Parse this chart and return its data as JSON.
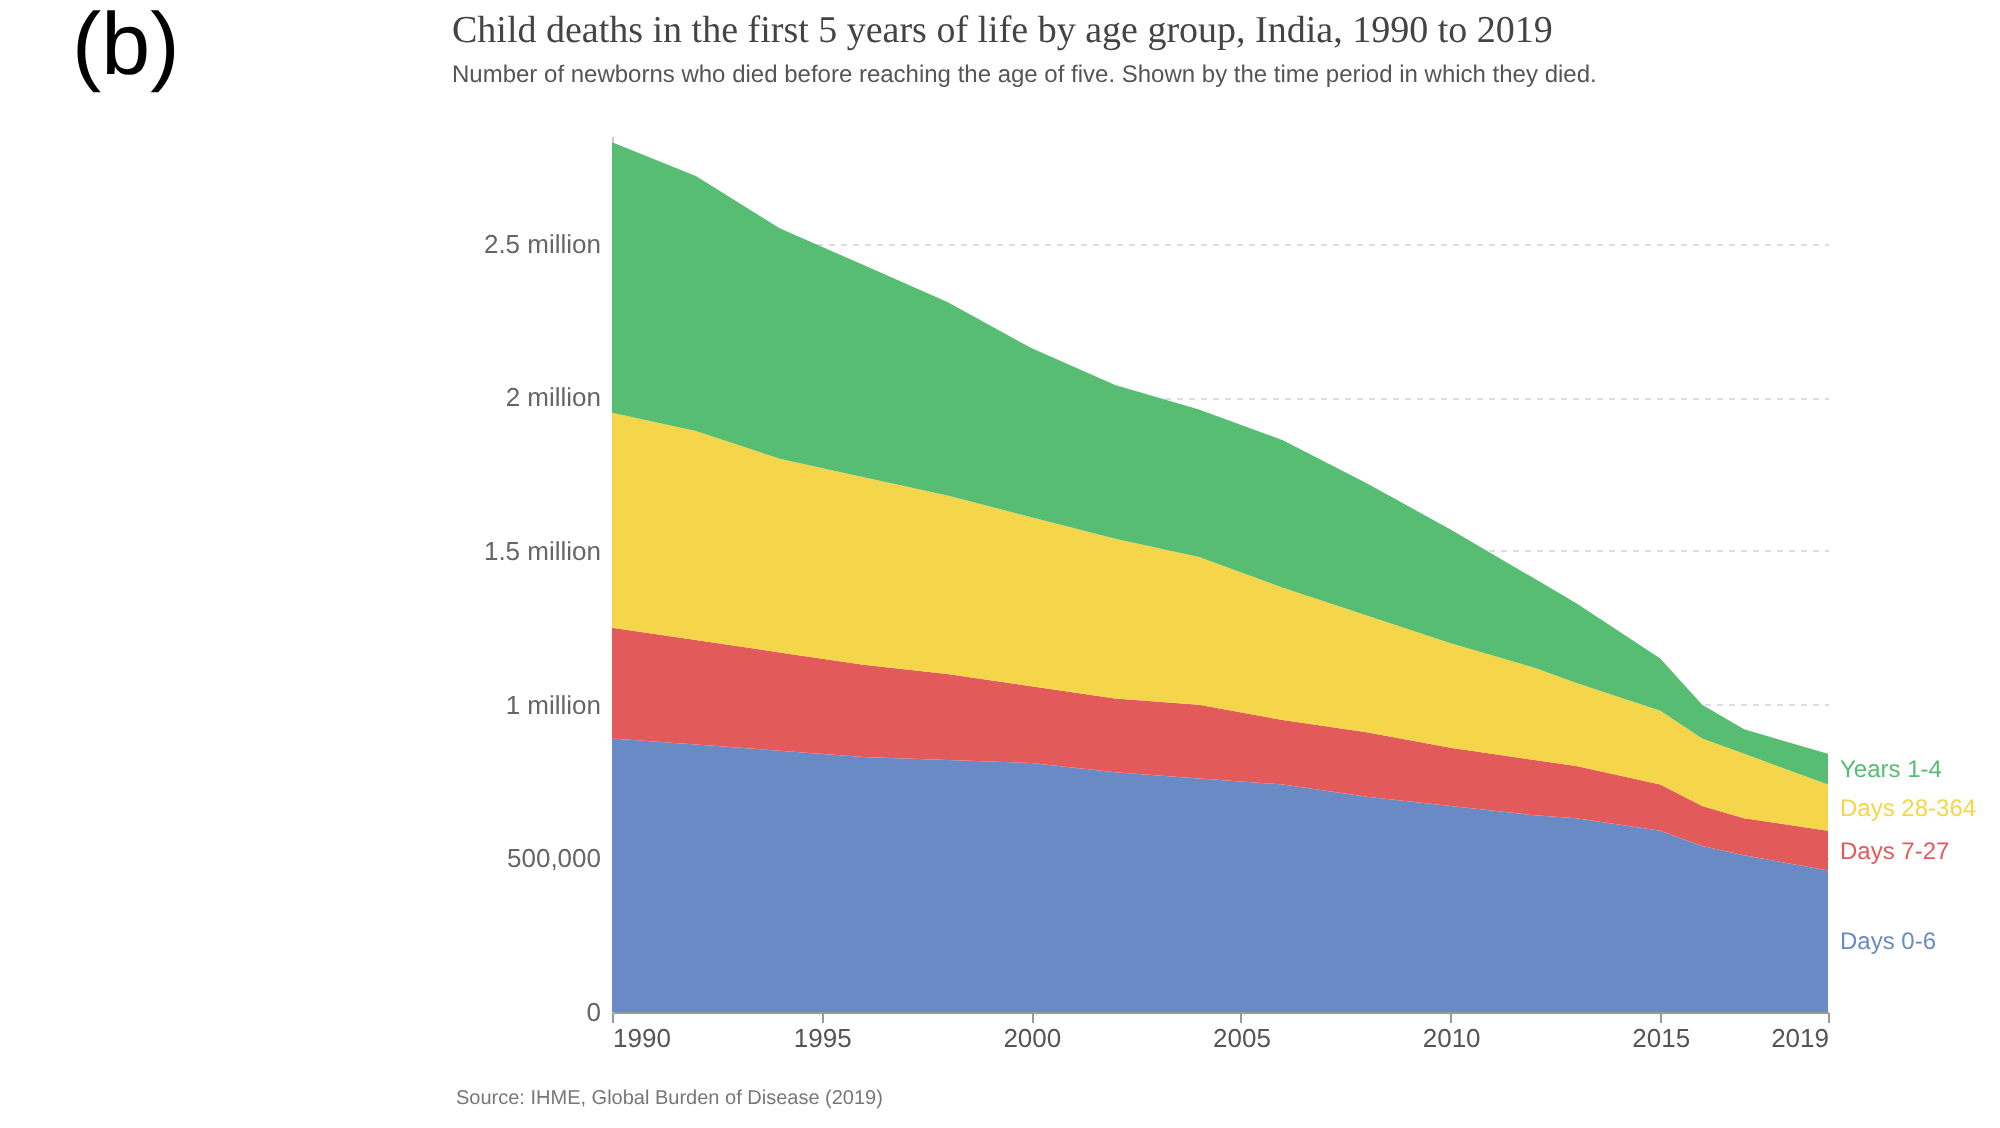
{
  "chart_data": {
    "type": "area",
    "stacked": true,
    "title": "Child deaths in the first 5 years of life by age group, India, 1990 to 2019",
    "subtitle": "Number of newborns who died before reaching the age of five. Shown by the time period in which they died.",
    "x": [
      1990,
      1992,
      1994,
      1996,
      1998,
      2000,
      2002,
      2004,
      2006,
      2008,
      2010,
      2012,
      2013,
      2015,
      2016,
      2017,
      2019
    ],
    "series": [
      {
        "name": "Days 0-6",
        "color": "#6a8ac6",
        "values": [
          890000,
          870000,
          850000,
          830000,
          820000,
          810000,
          780000,
          760000,
          740000,
          700000,
          670000,
          640000,
          630000,
          590000,
          540000,
          510000,
          460000
        ]
      },
      {
        "name": "Days 7-27",
        "color": "#e35a5a",
        "values": [
          360000,
          340000,
          320000,
          300000,
          280000,
          250000,
          240000,
          240000,
          210000,
          210000,
          190000,
          180000,
          170000,
          150000,
          130000,
          120000,
          130000
        ]
      },
      {
        "name": "Days 28-364",
        "color": "#f5d54a",
        "values": [
          700000,
          680000,
          630000,
          610000,
          580000,
          550000,
          520000,
          480000,
          430000,
          380000,
          340000,
          300000,
          270000,
          240000,
          220000,
          210000,
          150000
        ]
      },
      {
        "name": "Years 1-4",
        "color": "#57bd73",
        "values": [
          880000,
          830000,
          750000,
          690000,
          630000,
          550000,
          500000,
          480000,
          480000,
          430000,
          370000,
          290000,
          260000,
          170000,
          110000,
          80000,
          100000
        ]
      }
    ],
    "xlim": [
      1990,
      2019
    ],
    "xticks": [
      1990,
      1995,
      2000,
      2005,
      2010,
      2015,
      2019
    ],
    "ylim": [
      0,
      2850000
    ],
    "yticks": [
      0,
      {
        "value": 500000,
        "label": "500,000"
      },
      {
        "value": 1000000,
        "label": "1 million"
      },
      {
        "value": 1500000,
        "label": "1.5 million"
      },
      {
        "value": 2000000,
        "label": "2 million"
      },
      {
        "value": 2500000,
        "label": "2.5 million"
      }
    ],
    "grid": "y",
    "annotations": [
      "(b)",
      "Source: IHME, Global Burden of Disease (2019)"
    ]
  }
}
